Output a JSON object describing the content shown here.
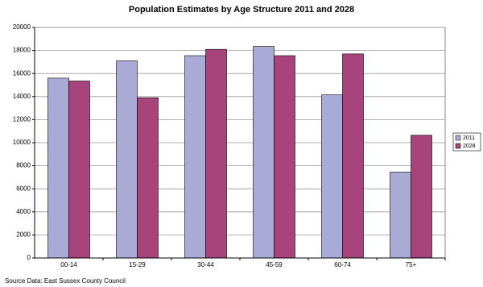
{
  "chart_data": {
    "type": "bar",
    "title": "Population Estimates by Age Structure 2011 and 2028",
    "categories": [
      "00-14",
      "15-29",
      "30-44",
      "45-59",
      "60-74",
      "75+"
    ],
    "series": [
      {
        "name": "2011",
        "color": "#aaaad6",
        "values": [
          15600,
          17100,
          17550,
          18350,
          14150,
          7450
        ]
      },
      {
        "name": "2028",
        "color": "#a8447c",
        "values": [
          15350,
          13900,
          18100,
          17550,
          17700,
          10650
        ]
      }
    ],
    "ylim": [
      0,
      20000
    ],
    "yticks": [
      0,
      2000,
      4000,
      6000,
      8000,
      10000,
      12000,
      14000,
      16000,
      18000,
      20000
    ],
    "grid": true,
    "legend": "right",
    "source": "Source Data: East Sussex County Council"
  }
}
